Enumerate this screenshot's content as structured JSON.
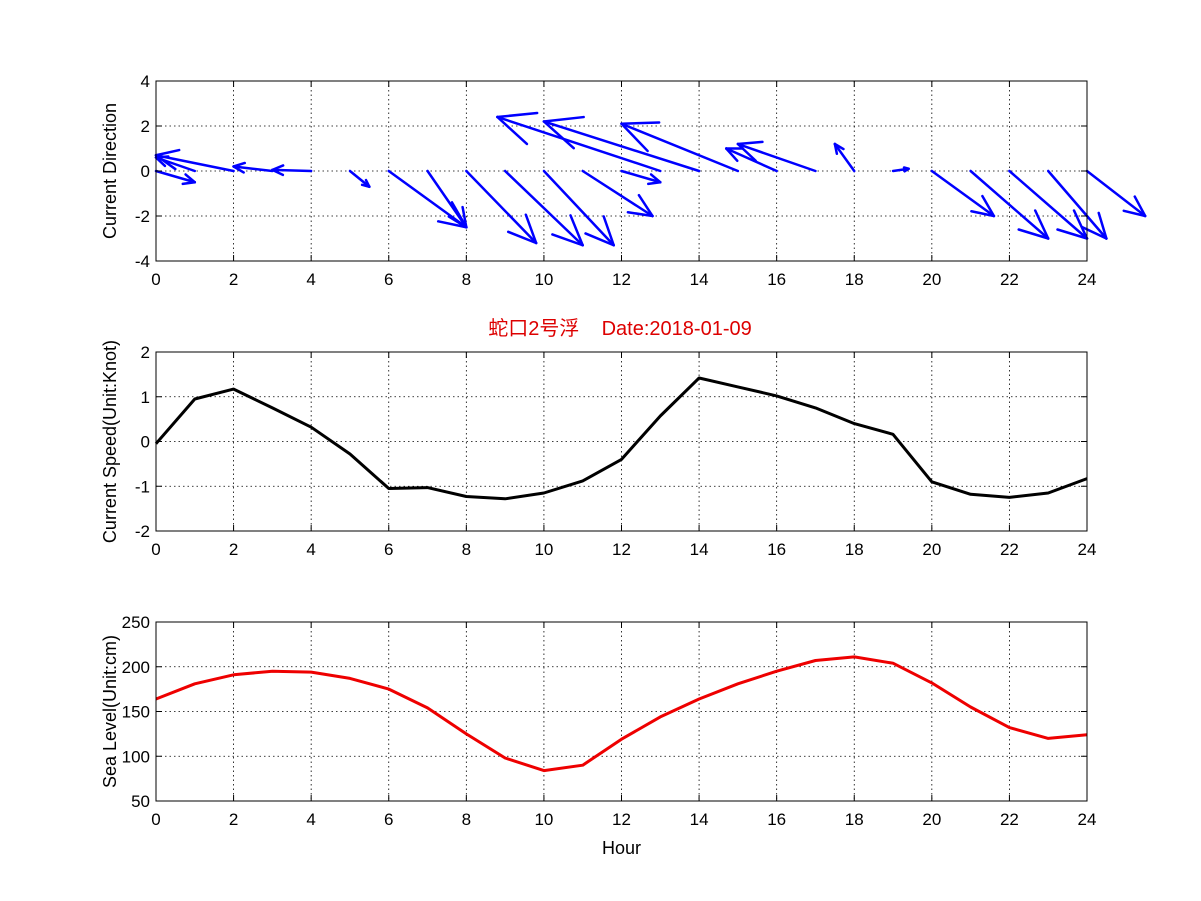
{
  "chart_data": [
    {
      "type": "quiver",
      "title": "",
      "xlabel": "",
      "ylabel": "Current Direction",
      "xlim": [
        0,
        24
      ],
      "ylim": [
        -4,
        4
      ],
      "xticks": [
        0,
        2,
        4,
        6,
        8,
        10,
        12,
        14,
        16,
        18,
        20,
        22,
        24
      ],
      "yticks": [
        -4,
        -2,
        0,
        2,
        4
      ],
      "grid": true,
      "color": "#0000ff",
      "x": [
        0,
        1,
        2,
        3,
        4,
        5,
        6,
        7,
        8,
        9,
        10,
        11,
        12,
        13,
        14,
        15,
        16,
        17,
        18,
        19,
        20,
        21,
        22,
        23,
        24
      ],
      "u": [
        1.0,
        -1.0,
        -2.0,
        -1.0,
        -1.0,
        0.5,
        2.0,
        1.0,
        1.8,
        2.0,
        1.8,
        1.8,
        1.0,
        -4.2,
        -4.0,
        -3.0,
        -1.3,
        -2.0,
        -0.5,
        0.4,
        1.6,
        2.0,
        2.0,
        1.5,
        1.5
      ],
      "v": [
        -0.5,
        0.6,
        0.7,
        0.2,
        0.05,
        -0.7,
        -2.5,
        -2.5,
        -3.2,
        -3.3,
        -3.3,
        -2.0,
        -0.5,
        2.4,
        2.2,
        2.1,
        1.0,
        1.2,
        1.2,
        0.1,
        -2.0,
        -3.0,
        -3.0,
        -3.0,
        -2.0
      ]
    },
    {
      "type": "line",
      "title": "蛇口2号浮    Date:2018-01-09",
      "xlabel": "",
      "ylabel": "Current Speed(Unit:Knot)",
      "xlim": [
        0,
        24
      ],
      "ylim": [
        -2,
        2
      ],
      "xticks": [
        0,
        2,
        4,
        6,
        8,
        10,
        12,
        14,
        16,
        18,
        20,
        22,
        24
      ],
      "yticks": [
        -2,
        -1,
        0,
        1,
        2
      ],
      "grid": true,
      "color": "#000000",
      "title_color": "#dd0000",
      "x": [
        0,
        1,
        2,
        3,
        4,
        5,
        6,
        7,
        8,
        9,
        10,
        11,
        12,
        13,
        14,
        15,
        16,
        17,
        18,
        19,
        20,
        21,
        22,
        23,
        24
      ],
      "y": [
        -0.05,
        0.95,
        1.17,
        0.75,
        0.32,
        -0.28,
        -1.05,
        -1.03,
        -1.23,
        -1.28,
        -1.15,
        -0.88,
        -0.4,
        0.57,
        1.42,
        1.22,
        1.02,
        0.75,
        0.4,
        0.16,
        -0.9,
        -1.18,
        -1.25,
        -1.15,
        -0.83
      ]
    },
    {
      "type": "line",
      "title": "",
      "xlabel": "Hour",
      "ylabel": "Sea Level(Unit:cm)",
      "xlim": [
        0,
        24
      ],
      "ylim": [
        50,
        250
      ],
      "xticks": [
        0,
        2,
        4,
        6,
        8,
        10,
        12,
        14,
        16,
        18,
        20,
        22,
        24
      ],
      "yticks": [
        50,
        100,
        150,
        200,
        250
      ],
      "grid": true,
      "color": "#ee0000",
      "x": [
        0,
        1,
        2,
        3,
        4,
        5,
        6,
        7,
        8,
        9,
        10,
        11,
        12,
        13,
        14,
        15,
        16,
        17,
        18,
        19,
        20,
        21,
        22,
        23,
        24
      ],
      "y": [
        164,
        181,
        191,
        195,
        194,
        187,
        175,
        154,
        125,
        98,
        84,
        90,
        119,
        144,
        164,
        181,
        195,
        207,
        211,
        204,
        182,
        155,
        132,
        120,
        124
      ]
    }
  ]
}
